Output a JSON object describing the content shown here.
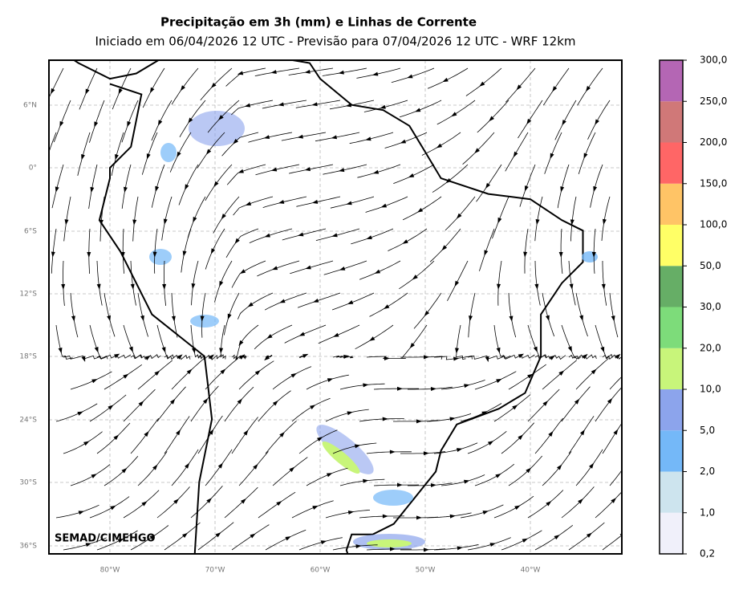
{
  "header": {
    "title": "Precipitação em 3h (mm) e Linhas de Corrente",
    "subtitle": "Iniciado em 06/04/2026 12 UTC - Previsão para 07/04/2026 12 UTC - WRF 12km"
  },
  "map": {
    "lat_labels": [
      "6°N",
      "0°",
      "6°S",
      "12°S",
      "18°S",
      "24°S",
      "30°S",
      "36°S"
    ],
    "lon_labels": [
      "80°W",
      "70°W",
      "60°W",
      "50°W",
      "40°W"
    ],
    "watermark": "SEMAD/CIMEHGO"
  },
  "colorbar": {
    "labels": [
      "0,2",
      "1,0",
      "2,0",
      "5,0",
      "10,0",
      "20,0",
      "30,0",
      "50,0",
      "100,0",
      "150,0",
      "200,0",
      "250,0",
      "300,0"
    ],
    "colors": [
      "#f0f0fa",
      "#cde4ee",
      "#74b8f8",
      "#8ca4ec",
      "#c8f57a",
      "#7ddc7a",
      "#66ae66",
      "#ffff66",
      "#ffc466",
      "#ff6666",
      "#d07878",
      "#b466b4"
    ]
  }
}
